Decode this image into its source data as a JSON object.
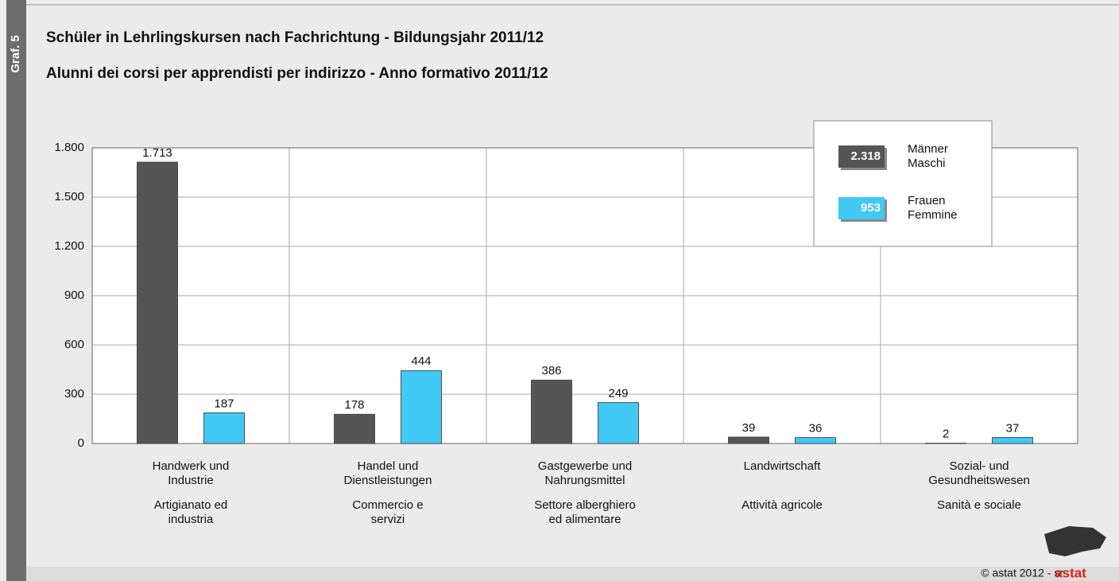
{
  "chart_data": {
    "type": "bar",
    "label": "Graf. 5",
    "title": "Schüler in Lehrlingskursen nach Fachrichtung - Bildungsjahr 2011/12",
    "subtitle": "Alunni dei corsi per apprendisti per indirizzo - Anno formativo 2011/12",
    "categories": [
      "Handwerk und\nIndustrie",
      "Handel und\nDienstleistungen",
      "Gastgewerbe und\nNahrungsmittel",
      "Landwirtschaft",
      "Sozial- und\nGesundheitswesen"
    ],
    "categories_it": [
      "Artigianato ed\nindustria",
      "Commercio e\nservizi",
      "Settore alberghiero\ned alimentare",
      "Attività agricole",
      "Sanità e sociale"
    ],
    "series": [
      {
        "name": "Männer\nMaschi",
        "color": "#555555",
        "values": [
          1713,
          178,
          386,
          39,
          2
        ],
        "value_labels": [
          "1.713",
          "178",
          "386",
          "39",
          "2"
        ],
        "total": {
          "value": 2318,
          "label": "2.318"
        }
      },
      {
        "name": "Frauen\nFemmine",
        "color": "#41c8f5",
        "values": [
          187,
          444,
          249,
          36,
          37
        ],
        "total": 953
      }
    ],
    "ylim": [
      0,
      1800
    ],
    "yticks": [
      0,
      300,
      600,
      900,
      {
        "value": 1200,
        "label": "1.200"
      },
      {
        "value": 1500,
        "label": "1.500"
      },
      {
        "value": 1800,
        "label": "1.800"
      }
    ],
    "grid": true,
    "legend": "upper right",
    "footer": "© astat 2012 - sr",
    "logo": "astat"
  }
}
